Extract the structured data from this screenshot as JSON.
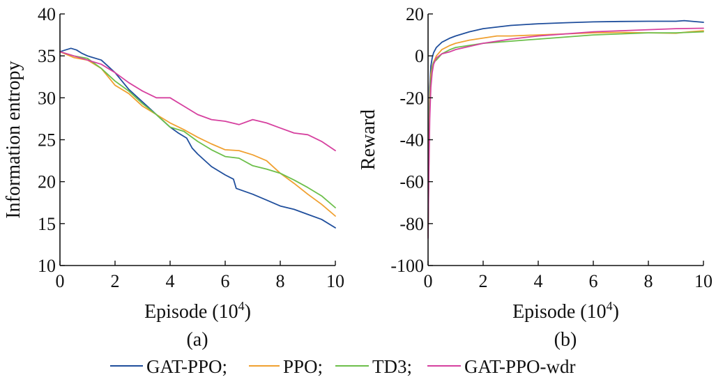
{
  "chart_data": [
    {
      "type": "line",
      "panel_label": "(a)",
      "xlabel": "Episode (10",
      "xlabel_sup": "4",
      "xlabel_close": ")",
      "ylabel": "Information entropy",
      "xlim": [
        0,
        10
      ],
      "ylim": [
        10,
        40
      ],
      "xticks": [
        0,
        2,
        4,
        6,
        8,
        10
      ],
      "yticks": [
        10,
        15,
        20,
        25,
        30,
        35,
        40
      ],
      "grid": false,
      "series": [
        {
          "name": "GAT-PPO",
          "color": "#1f4e9c",
          "x": [
            0,
            0.2,
            0.4,
            0.6,
            0.8,
            1,
            1.5,
            2,
            2.5,
            3,
            3.5,
            4,
            4.3,
            4.6,
            4.8,
            5,
            5.5,
            6,
            6.3,
            6.4,
            7,
            7.5,
            8,
            8.5,
            9,
            9.5,
            10
          ],
          "y": [
            35.5,
            35.7,
            35.9,
            35.7,
            35.3,
            35.0,
            34.5,
            33.0,
            31.0,
            29.5,
            28.0,
            26.5,
            25.8,
            25.2,
            24.0,
            23.3,
            21.8,
            20.8,
            20.3,
            19.2,
            18.5,
            17.8,
            17.1,
            16.7,
            16.1,
            15.5,
            14.5
          ]
        },
        {
          "name": "PPO",
          "color": "#f0a030",
          "x": [
            0,
            0.5,
            1,
            1.5,
            2,
            2.5,
            3,
            3.5,
            4,
            4.5,
            5,
            5.5,
            6,
            6.5,
            7,
            7.5,
            8,
            8.5,
            9,
            9.5,
            10
          ],
          "y": [
            35.5,
            34.8,
            34.5,
            33.5,
            31.5,
            30.5,
            29.0,
            28.0,
            27.0,
            26.2,
            25.3,
            24.5,
            23.8,
            23.7,
            23.2,
            22.5,
            21.0,
            19.8,
            18.5,
            17.3,
            15.9
          ]
        },
        {
          "name": "TD3",
          "color": "#6cbf4a",
          "x": [
            0,
            0.5,
            1,
            1.5,
            2,
            2.5,
            3,
            3.5,
            4,
            4.5,
            5,
            5.5,
            6,
            6.5,
            7,
            7.5,
            8,
            8.5,
            9,
            9.5,
            10
          ],
          "y": [
            35.5,
            35.0,
            34.7,
            33.5,
            32.0,
            30.8,
            29.3,
            28.0,
            26.5,
            26.0,
            24.8,
            23.8,
            23.0,
            22.8,
            21.9,
            21.5,
            21.0,
            20.2,
            19.3,
            18.3,
            16.9
          ]
        },
        {
          "name": "GAT-PPO-wdr",
          "color": "#d6409f",
          "x": [
            0,
            0.5,
            1,
            1.5,
            2,
            2.5,
            3,
            3.5,
            4,
            4.5,
            5,
            5.5,
            6,
            6.5,
            7,
            7.5,
            8,
            8.5,
            9,
            9.5,
            10
          ],
          "y": [
            35.5,
            35.0,
            34.5,
            34.0,
            33.0,
            31.8,
            30.8,
            30.0,
            30.0,
            29.0,
            28.0,
            27.4,
            27.2,
            26.8,
            27.4,
            27.0,
            26.4,
            25.8,
            25.6,
            24.8,
            23.7
          ]
        }
      ]
    },
    {
      "type": "line",
      "panel_label": "(b)",
      "xlabel": "Episode (10",
      "xlabel_sup": "4",
      "xlabel_close": ")",
      "ylabel": "Reward",
      "xlim": [
        0,
        10
      ],
      "ylim": [
        -100,
        20
      ],
      "xticks": [
        0,
        2,
        4,
        6,
        8,
        10
      ],
      "yticks": [
        -100,
        -80,
        -60,
        -40,
        -20,
        0,
        20
      ],
      "grid": false,
      "series": [
        {
          "name": "GAT-PPO",
          "color": "#1f4e9c",
          "x": [
            0,
            0.03,
            0.06,
            0.1,
            0.15,
            0.2,
            0.3,
            0.5,
            0.8,
            1,
            1.5,
            2,
            3,
            4,
            5,
            6,
            7,
            8,
            9,
            9.3,
            10
          ],
          "y": [
            -85,
            -40,
            -15,
            -5,
            -1,
            1.5,
            4,
            6.5,
            8.5,
            9.5,
            11.5,
            13,
            14.5,
            15.3,
            15.8,
            16.2,
            16.4,
            16.5,
            16.5,
            16.8,
            16.0
          ]
        },
        {
          "name": "PPO",
          "color": "#f0a030",
          "x": [
            0,
            0.03,
            0.06,
            0.1,
            0.15,
            0.2,
            0.3,
            0.5,
            0.8,
            1,
            1.5,
            2,
            2.5,
            3,
            4,
            5,
            6,
            7,
            8,
            9,
            9.5,
            10
          ],
          "y": [
            -86,
            -45,
            -20,
            -9,
            -5,
            -3,
            0,
            3,
            5,
            6,
            7.5,
            8.5,
            9.5,
            9.5,
            10,
            10.5,
            11,
            11.2,
            11,
            10.8,
            11.5,
            12
          ]
        },
        {
          "name": "TD3",
          "color": "#6cbf4a",
          "x": [
            0,
            0.03,
            0.06,
            0.1,
            0.15,
            0.2,
            0.3,
            0.5,
            0.8,
            1,
            1.5,
            2,
            3,
            4,
            5,
            6,
            7,
            8,
            9,
            10
          ],
          "y": [
            -86,
            -50,
            -25,
            -12,
            -6,
            -3,
            -2,
            1,
            3,
            4,
            5,
            6,
            7,
            8,
            9,
            10,
            10.5,
            11,
            11,
            11.5
          ]
        },
        {
          "name": "GAT-PPO-wdr",
          "color": "#d6409f",
          "x": [
            0,
            0.03,
            0.06,
            0.1,
            0.15,
            0.2,
            0.3,
            0.5,
            0.8,
            1,
            1.5,
            2,
            3,
            4,
            5,
            6,
            7,
            8,
            9,
            10
          ],
          "y": [
            -87,
            -55,
            -30,
            -15,
            -8,
            -4,
            -1,
            1,
            2,
            3,
            4.5,
            6,
            8,
            9.5,
            10.5,
            11.5,
            12,
            12.5,
            13,
            13.2
          ]
        }
      ]
    }
  ],
  "legend": {
    "placement": "bottom",
    "items": [
      {
        "name": "GAT-PPO;",
        "color": "#1f4e9c"
      },
      {
        "name": "PPO;",
        "color": "#f0a030"
      },
      {
        "name": "TD3;",
        "color": "#6cbf4a"
      },
      {
        "name": "GAT-PPO-wdr",
        "color": "#d6409f"
      }
    ]
  }
}
